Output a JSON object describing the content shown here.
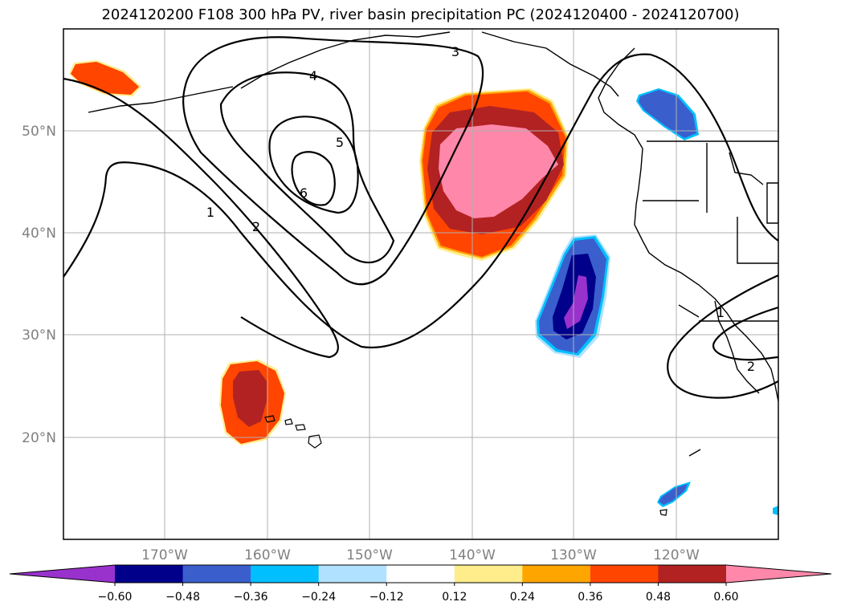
{
  "title": "2024120200 F108 300 hPa PV, river basin precipitation PC (2024120400 - 2024120700)",
  "chart_data": {
    "type": "contour",
    "projection": "PlateCarree",
    "xlim": [
      -180,
      -110
    ],
    "ylim": [
      10,
      60
    ],
    "x_ticks": [
      -170,
      -160,
      -150,
      -140,
      -130,
      -120
    ],
    "x_tick_labels": [
      "170°W",
      "160°W",
      "150°W",
      "140°W",
      "130°W",
      "120°W"
    ],
    "y_ticks": [
      20,
      30,
      40,
      50
    ],
    "y_tick_labels": [
      "20°N",
      "30°N",
      "40°N",
      "50°N"
    ],
    "grid": true,
    "contour_field": "300 hPa PV",
    "contour_levels": [
      1,
      2,
      3,
      4,
      5,
      6
    ],
    "contour_labels": [
      "1",
      "2",
      "3",
      "4",
      "5",
      "6",
      "2",
      "1"
    ],
    "fill_field": "river basin precipitation PC",
    "colorbar": {
      "boundaries": [
        -0.6,
        -0.48,
        -0.36,
        -0.24,
        -0.12,
        0.12,
        0.24,
        0.36,
        0.48,
        0.6
      ],
      "tick_labels": [
        "−0.60",
        "−0.48",
        "−0.36",
        "−0.24",
        "−0.12",
        "0.12",
        "0.24",
        "0.36",
        "0.48",
        "0.60"
      ],
      "colors": [
        "#9932cc",
        "#00008b",
        "#3a5fcd",
        "#00bfff",
        "#b0e2ff",
        "#ffffff",
        "#ffec8b",
        "#ffa500",
        "#ff4500",
        "#b22222",
        "#ff88aa"
      ],
      "extend": "both"
    },
    "regions": [
      {
        "sign": "positive",
        "peak": 0.6,
        "center_lon": -140,
        "center_lat": 46
      },
      {
        "sign": "positive",
        "peak": 0.48,
        "center_lon": -162,
        "center_lat": 25
      },
      {
        "sign": "positive",
        "peak": 0.36,
        "center_lon": -176,
        "center_lat": 56
      },
      {
        "sign": "negative",
        "peak": -0.6,
        "center_lon": -129,
        "center_lat": 34
      },
      {
        "sign": "negative",
        "peak": -0.36,
        "center_lon": -120,
        "center_lat": 52
      },
      {
        "sign": "negative",
        "peak": -0.36,
        "center_lon": -119,
        "center_lat": 14
      }
    ]
  }
}
